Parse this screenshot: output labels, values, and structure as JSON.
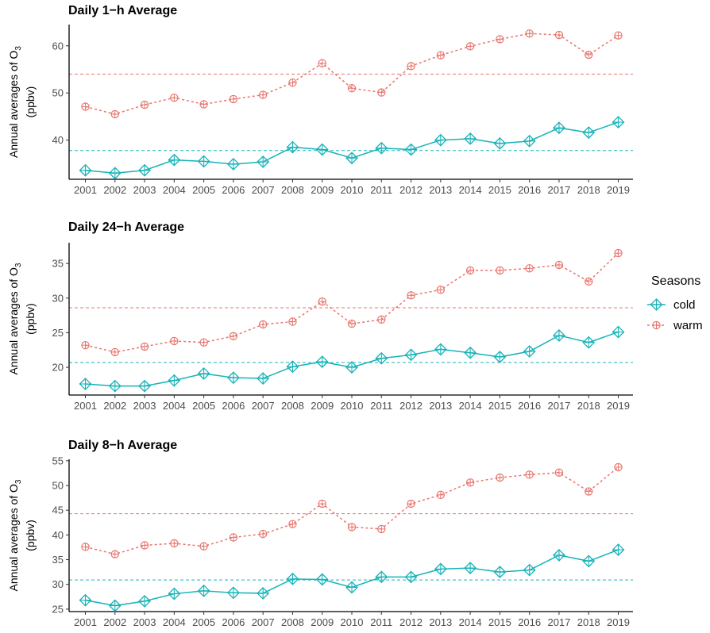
{
  "legend": {
    "title": "Seasons",
    "items": [
      {
        "label": "cold",
        "color": "#17b3b8"
      },
      {
        "label": "warm",
        "color": "#e8776f"
      }
    ]
  },
  "chart_data": [
    {
      "type": "line",
      "title": "Daily 1−h Average",
      "ylabel_main": "Annual averages of O",
      "ylabel_sub": "3",
      "ylabel_unit": "(ppbv)",
      "categories": [
        "2001",
        "2002",
        "2003",
        "2004",
        "2005",
        "2006",
        "2007",
        "2008",
        "2009",
        "2010",
        "2011",
        "2012",
        "2013",
        "2014",
        "2015",
        "2016",
        "2017",
        "2018",
        "2019"
      ],
      "ylim": [
        31.7,
        64.5
      ],
      "yticks": [
        40,
        50,
        60
      ],
      "series": [
        {
          "name": "cold",
          "values": [
            33.6,
            33.0,
            33.6,
            35.8,
            35.5,
            34.9,
            35.4,
            38.5,
            38.0,
            36.2,
            38.3,
            38.0,
            40.0,
            40.3,
            39.3,
            39.8,
            42.6,
            41.6,
            43.8
          ],
          "mean": 37.8
        },
        {
          "name": "warm",
          "values": [
            47.1,
            45.5,
            47.5,
            49.0,
            47.6,
            48.7,
            49.6,
            52.2,
            56.3,
            51.0,
            50.1,
            55.7,
            58.0,
            59.9,
            61.4,
            62.6,
            62.3,
            58.1,
            62.2
          ],
          "mean": 54.0
        }
      ]
    },
    {
      "type": "line",
      "title": "Daily 24−h Average",
      "ylabel_main": "Annual averages of O",
      "ylabel_sub": "3",
      "ylabel_unit": "(ppbv)",
      "categories": [
        "2001",
        "2002",
        "2003",
        "2004",
        "2005",
        "2006",
        "2007",
        "2008",
        "2009",
        "2010",
        "2011",
        "2012",
        "2013",
        "2014",
        "2015",
        "2016",
        "2017",
        "2018",
        "2019"
      ],
      "ylim": [
        16.0,
        38.0
      ],
      "yticks": [
        20,
        25,
        30,
        35
      ],
      "series": [
        {
          "name": "cold",
          "values": [
            17.6,
            17.3,
            17.3,
            18.1,
            19.1,
            18.5,
            18.4,
            20.1,
            20.8,
            20.0,
            21.3,
            21.8,
            22.6,
            22.1,
            21.5,
            22.3,
            24.6,
            23.6,
            25.1
          ],
          "mean": 20.7
        },
        {
          "name": "warm",
          "values": [
            23.2,
            22.2,
            23.0,
            23.8,
            23.6,
            24.5,
            26.2,
            26.6,
            29.5,
            26.3,
            26.9,
            30.4,
            31.2,
            34.0,
            34.0,
            34.3,
            34.8,
            32.4,
            36.5
          ],
          "mean": 28.6
        }
      ]
    },
    {
      "type": "line",
      "title": "Daily 8−h Average",
      "ylabel_main": "Annual averages of O",
      "ylabel_sub": "3",
      "ylabel_unit": "(ppbv)",
      "categories": [
        "2001",
        "2002",
        "2003",
        "2004",
        "2005",
        "2006",
        "2007",
        "2008",
        "2009",
        "2010",
        "2011",
        "2012",
        "2013",
        "2014",
        "2015",
        "2016",
        "2017",
        "2018",
        "2019"
      ],
      "ylim": [
        24.5,
        55.3
      ],
      "yticks": [
        25,
        30,
        35,
        40,
        45,
        50,
        55
      ],
      "series": [
        {
          "name": "cold",
          "values": [
            26.8,
            25.7,
            26.6,
            28.1,
            28.7,
            28.3,
            28.2,
            31.1,
            31.0,
            29.4,
            31.5,
            31.5,
            33.1,
            33.3,
            32.5,
            32.9,
            35.9,
            34.7,
            37.0
          ],
          "mean": 30.9
        },
        {
          "name": "warm",
          "values": [
            37.6,
            36.1,
            37.9,
            38.3,
            37.7,
            39.5,
            40.2,
            42.2,
            46.3,
            41.6,
            41.2,
            46.3,
            48.1,
            50.6,
            51.6,
            52.2,
            52.6,
            48.8,
            53.7
          ],
          "mean": 44.3
        }
      ]
    }
  ]
}
